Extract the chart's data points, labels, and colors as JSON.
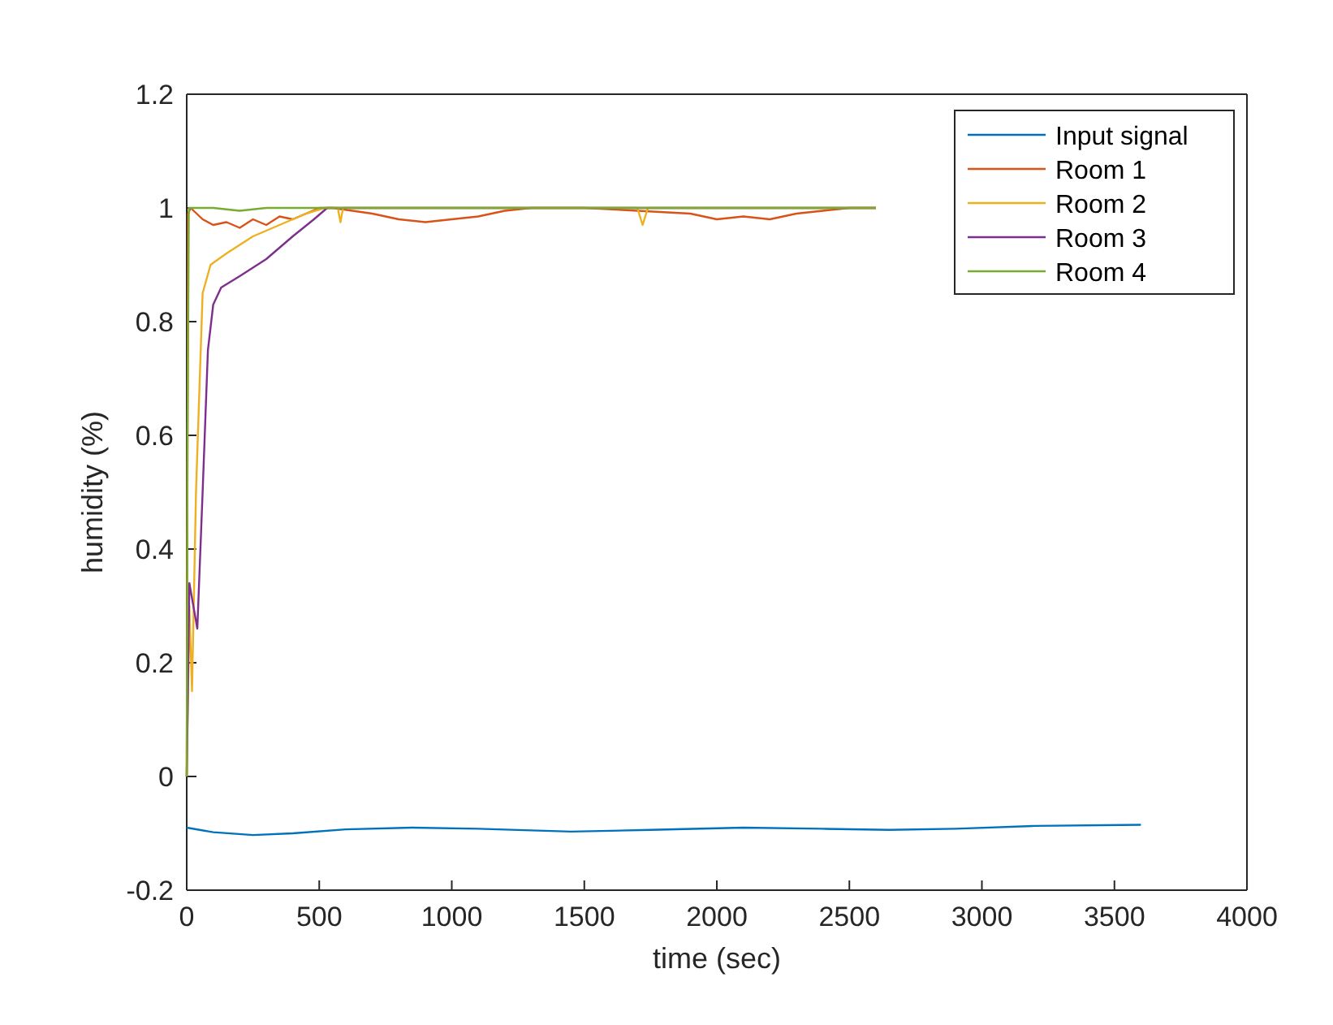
{
  "chart_data": {
    "type": "line",
    "xlabel": "time (sec)",
    "ylabel": "humidity (%)",
    "xlim": [
      0,
      4000
    ],
    "ylim": [
      -0.2,
      1.2
    ],
    "xticks": [
      0,
      500,
      1000,
      1500,
      2000,
      2500,
      3000,
      3500,
      4000
    ],
    "yticks": [
      -0.2,
      0,
      0.2,
      0.4,
      0.6,
      0.8,
      1,
      1.2
    ],
    "grid": false,
    "legend": "top right",
    "line_style": "solid",
    "marker": "none",
    "series": [
      {
        "name": "Input signal",
        "color": "#0072bd",
        "x": [
          0,
          100,
          250,
          400,
          600,
          850,
          1100,
          1450,
          1750,
          2100,
          2400,
          2650,
          2900,
          3200,
          3600
        ],
        "values": [
          -0.09,
          -0.098,
          -0.103,
          -0.1,
          -0.093,
          -0.09,
          -0.092,
          -0.097,
          -0.094,
          -0.09,
          -0.092,
          -0.094,
          -0.092,
          -0.087,
          -0.085
        ]
      },
      {
        "name": "Room 1",
        "color": "#d95319",
        "x": [
          0,
          5,
          15,
          60,
          100,
          150,
          200,
          250,
          300,
          350,
          400,
          450,
          500,
          550,
          700,
          800,
          900,
          1000,
          1100,
          1200,
          1300,
          1500,
          1900,
          2000,
          2100,
          2200,
          2300,
          2400,
          2500,
          2600
        ],
        "values": [
          0,
          0.99,
          1,
          0.98,
          0.97,
          0.975,
          0.965,
          0.98,
          0.97,
          0.985,
          0.98,
          0.99,
          1,
          1,
          0.99,
          0.98,
          0.975,
          0.98,
          0.985,
          0.995,
          1,
          1,
          0.99,
          0.98,
          0.985,
          0.98,
          0.99,
          0.995,
          1,
          1
        ]
      },
      {
        "name": "Room 2",
        "color": "#edb120",
        "x": [
          0,
          10,
          20,
          35,
          60,
          90,
          150,
          250,
          350,
          450,
          520,
          570,
          580,
          590,
          620,
          1700,
          1720,
          1740,
          1800,
          2600
        ],
        "values": [
          0,
          0.3,
          0.15,
          0.5,
          0.85,
          0.9,
          0.92,
          0.95,
          0.97,
          0.99,
          1,
          1,
          0.975,
          1,
          1,
          1,
          0.97,
          1,
          1,
          1
        ]
      },
      {
        "name": "Room 3",
        "color": "#7e2f8e",
        "x": [
          0,
          10,
          25,
          40,
          60,
          80,
          100,
          130,
          200,
          300,
          400,
          480,
          530,
          2600
        ],
        "values": [
          0,
          0.34,
          0.3,
          0.26,
          0.5,
          0.75,
          0.83,
          0.86,
          0.88,
          0.91,
          0.95,
          0.98,
          1,
          1
        ]
      },
      {
        "name": "Room 4",
        "color": "#77ac30",
        "x": [
          0,
          3,
          8,
          100,
          200,
          300,
          2600
        ],
        "values": [
          0,
          0.6,
          1,
          1,
          0.995,
          1,
          1
        ]
      }
    ]
  }
}
